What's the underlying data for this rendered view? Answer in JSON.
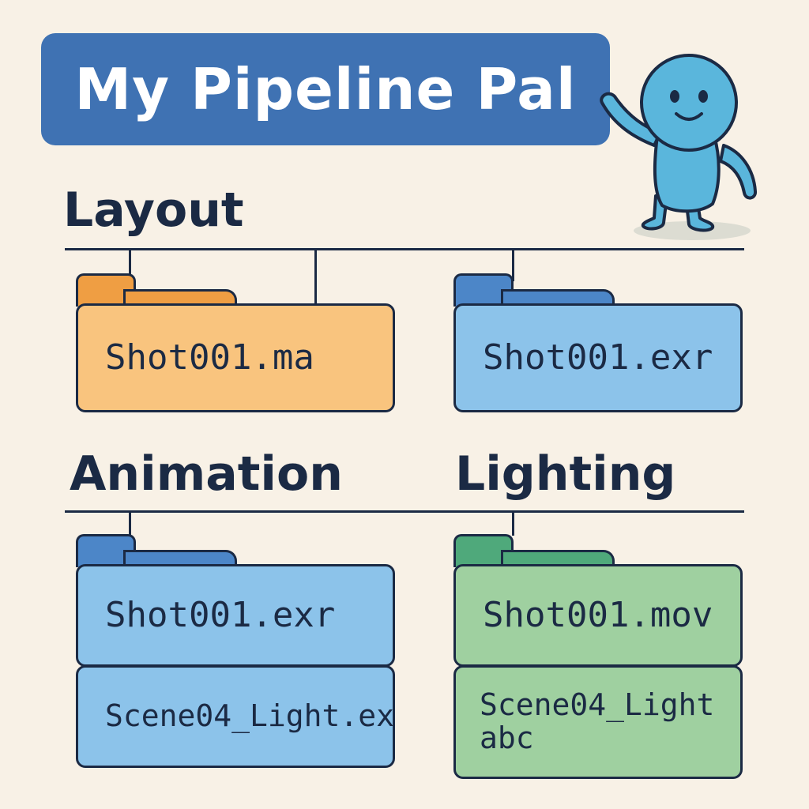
{
  "title": "My Pipeline Pal",
  "sections": {
    "layout": {
      "heading": "Layout"
    },
    "animation": {
      "heading": "Animation"
    },
    "lighting": {
      "heading": "Lighting"
    }
  },
  "files": {
    "layout_ma": "Shot001.ma",
    "layout_exr": "Shot001.exr",
    "animation_exr": "Shot001.exr",
    "animation_scene": "Scene04_Light.ex",
    "lighting_mov": "Shot001.mov",
    "lighting_scene": "Scene04_Light\nabc"
  },
  "colors": {
    "background": "#f8f1e6",
    "banner": "#3f72b3",
    "ink": "#1b2a44",
    "orange_folder": "#f9c47e",
    "blue_folder": "#8cc3ea",
    "green_folder": "#9fd0a0",
    "mascot": "#5ab6dc"
  },
  "icons": {
    "mascot": "waving-blue-mascot",
    "folders": "folder-icon"
  }
}
